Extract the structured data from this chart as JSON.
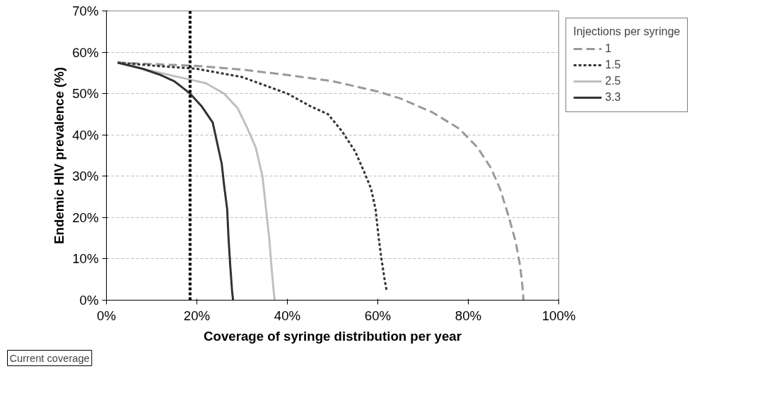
{
  "chart_data": {
    "type": "line",
    "xlabel": "Coverage of syringe distribution per year",
    "ylabel": "Endemic HIV prevalence (%)",
    "legend_title": "Injections per syringe",
    "legend": "right",
    "grid": "y",
    "xlim": [
      0,
      100
    ],
    "ylim": [
      0,
      70
    ],
    "xticks": [
      {
        "value": 0,
        "label": "0%"
      },
      {
        "value": 20,
        "label": "20%"
      },
      {
        "value": 40,
        "label": "40%"
      },
      {
        "value": 60,
        "label": "60%"
      },
      {
        "value": 80,
        "label": "80%"
      },
      {
        "value": 100,
        "label": "100%"
      }
    ],
    "yticks": [
      {
        "value": 0,
        "label": "0%"
      },
      {
        "value": 10,
        "label": "10%"
      },
      {
        "value": 20,
        "label": "20%"
      },
      {
        "value": 30,
        "label": "30%"
      },
      {
        "value": 40,
        "label": "40%"
      },
      {
        "value": 50,
        "label": "50%"
      },
      {
        "value": 60,
        "label": "60%"
      },
      {
        "value": 70,
        "label": "70%"
      }
    ],
    "series": [
      {
        "name": "1",
        "color": "#999999",
        "line_style": "dashed",
        "x": [
          2.5,
          20,
          30,
          40,
          50,
          60,
          65,
          72,
          78,
          82,
          85,
          87,
          89,
          90.5,
          91.5,
          92,
          92.2
        ],
        "values": [
          57.5,
          56.7,
          55.8,
          54.5,
          53,
          50.5,
          48.8,
          45.5,
          41.5,
          37,
          32,
          27,
          20,
          14,
          8,
          3,
          0
        ]
      },
      {
        "name": "1.5",
        "color": "#333333",
        "line_style": "dotted",
        "x": [
          2.5,
          10,
          20,
          30,
          40,
          45,
          49,
          52,
          55,
          57,
          58.5,
          59.5,
          60.2,
          60.8,
          61.5,
          62
        ],
        "values": [
          57.5,
          56.8,
          56,
          54,
          50,
          47,
          45,
          41,
          36,
          31,
          27,
          22,
          15,
          10,
          5,
          2
        ]
      },
      {
        "name": "2.5",
        "color": "#c0c0c0",
        "line_style": "solid",
        "x": [
          2.5,
          10,
          18,
          22,
          26,
          29,
          31,
          33,
          34.5,
          35.3,
          36,
          36.5,
          37,
          37.2
        ],
        "values": [
          57.5,
          55.5,
          53.5,
          52.5,
          50,
          46.5,
          42,
          37,
          30,
          22,
          15,
          8,
          2,
          0
        ]
      },
      {
        "name": "3.3",
        "color": "#333333",
        "line_style": "solid",
        "x": [
          2.5,
          8,
          12,
          15,
          18.5,
          21,
          23.5,
          24.5,
          25.5,
          26,
          26.7,
          27,
          27.4,
          27.8,
          28
        ],
        "values": [
          57.5,
          56,
          54.5,
          53,
          50,
          47,
          43,
          38,
          33,
          28,
          22,
          15,
          8,
          2,
          0
        ]
      }
    ],
    "ref_lines": [
      {
        "axis": "x",
        "value": 18.5,
        "color": "#000000",
        "line_style": "dotted"
      }
    ],
    "annotations": [
      "Current coverage"
    ]
  }
}
